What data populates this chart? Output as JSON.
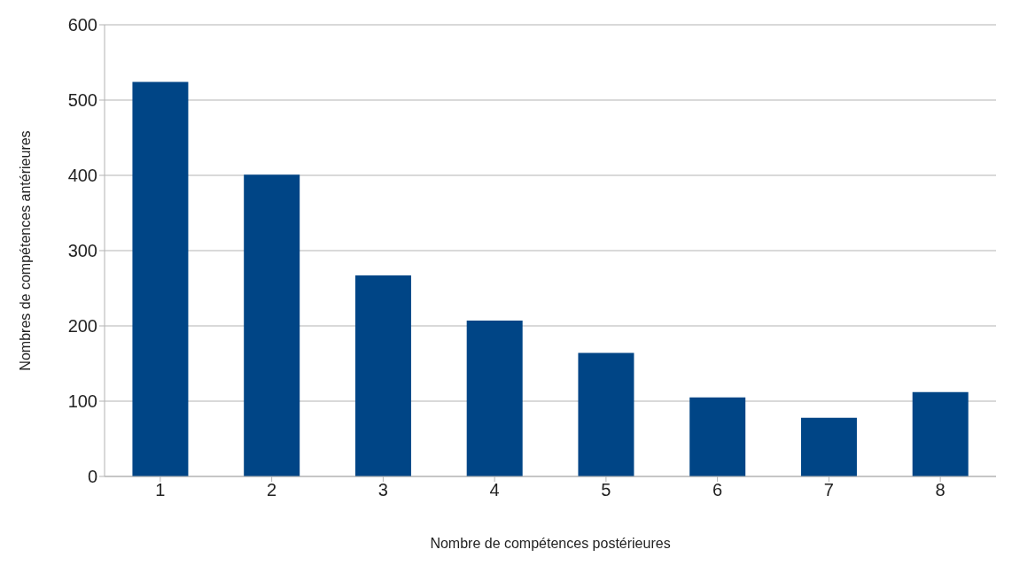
{
  "chart_data": {
    "type": "bar",
    "xlabel": "Nombre de compétences postérieures",
    "ylabel": "Nombres de compétences antérieures",
    "categories": [
      "1",
      "2",
      "3",
      "4",
      "5",
      "6",
      "7",
      "8"
    ],
    "values": [
      524,
      401,
      267,
      207,
      164,
      105,
      78,
      112
    ],
    "color": "#004586",
    "ylim": [
      0,
      600
    ],
    "yticks": [
      0,
      100,
      200,
      300,
      400,
      500,
      600
    ],
    "grid": "y"
  }
}
